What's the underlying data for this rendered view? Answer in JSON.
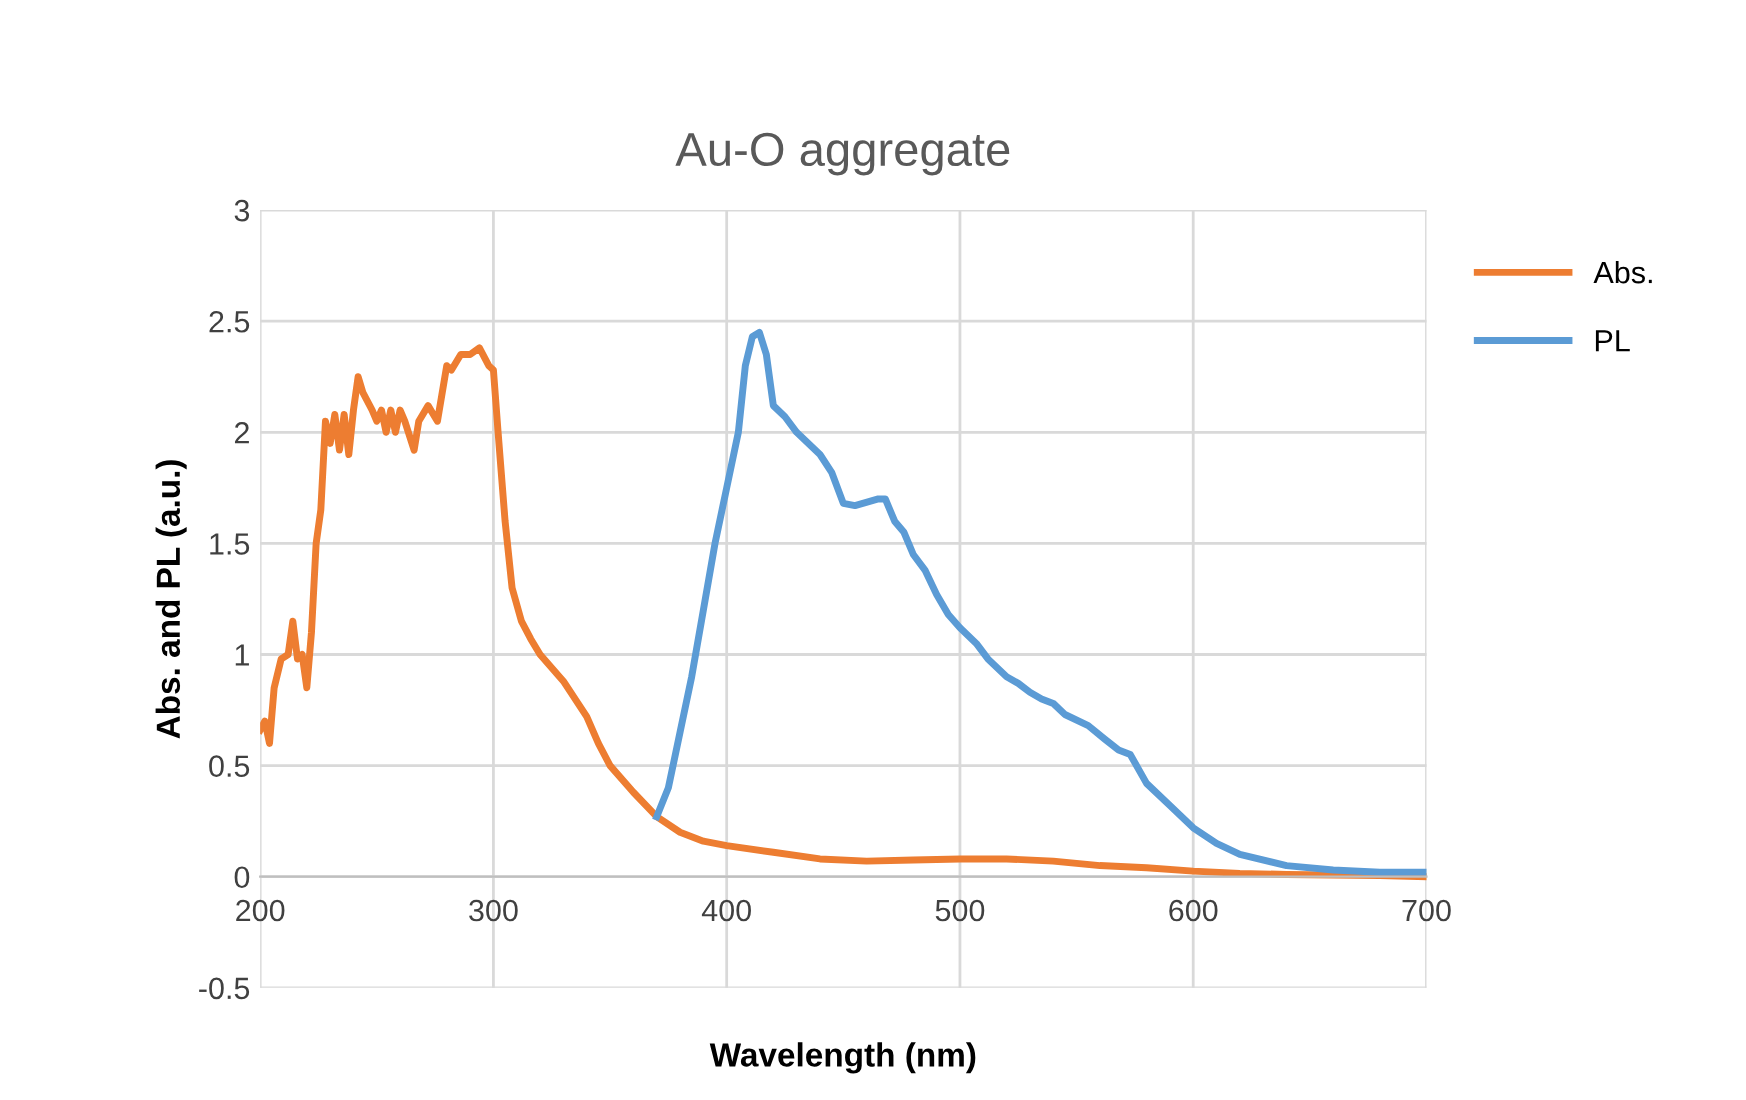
{
  "chart_data": {
    "type": "line",
    "title": "Au-O aggregate",
    "xlabel": "Wavelength (nm)",
    "ylabel": "Abs. and PL (a.u.)",
    "xlim": [
      200,
      700
    ],
    "xticks": [
      200,
      300,
      400,
      500,
      600,
      700
    ],
    "ylim": [
      -0.5,
      3
    ],
    "yticks": [
      -0.5,
      0,
      0.5,
      1,
      1.5,
      2,
      2.5,
      3
    ],
    "grid": true,
    "legend": "right",
    "marker": "none",
    "line_style": "solid",
    "series": [
      {
        "name": "Abs.",
        "color": "#ed7d31",
        "x": [
          200,
          202,
          204,
          206,
          209,
          212,
          214,
          216,
          218,
          220,
          222,
          224,
          226,
          228,
          230,
          232,
          234,
          236,
          238,
          240,
          242,
          244,
          248,
          250,
          252,
          254,
          256,
          258,
          260,
          262,
          266,
          268,
          272,
          276,
          280,
          282,
          286,
          290,
          294,
          298,
          300,
          302,
          305,
          308,
          312,
          316,
          320,
          330,
          340,
          345,
          350,
          360,
          370,
          380,
          390,
          400,
          420,
          440,
          460,
          480,
          500,
          520,
          540,
          560,
          580,
          600,
          620,
          640,
          660,
          680,
          700
        ],
        "values": [
          0.66,
          0.7,
          0.6,
          0.85,
          0.98,
          1.0,
          1.15,
          0.98,
          1.0,
          0.85,
          1.1,
          1.5,
          1.65,
          2.05,
          1.95,
          2.08,
          1.92,
          2.08,
          1.9,
          2.1,
          2.25,
          2.18,
          2.1,
          2.05,
          2.1,
          2.0,
          2.1,
          2.0,
          2.1,
          2.05,
          1.92,
          2.05,
          2.12,
          2.05,
          2.3,
          2.28,
          2.35,
          2.35,
          2.38,
          2.3,
          2.28,
          2.0,
          1.6,
          1.3,
          1.15,
          1.07,
          1.0,
          0.88,
          0.72,
          0.6,
          0.5,
          0.38,
          0.27,
          0.2,
          0.16,
          0.14,
          0.11,
          0.08,
          0.07,
          0.075,
          0.08,
          0.08,
          0.07,
          0.05,
          0.04,
          0.025,
          0.015,
          0.01,
          0.008,
          0.005,
          0.0
        ]
      },
      {
        "name": "PL",
        "color": "#5b9bd5",
        "x": [
          370,
          375,
          380,
          385,
          390,
          395,
          400,
          405,
          408,
          411,
          414,
          417,
          420,
          425,
          430,
          440,
          445,
          450,
          455,
          465,
          468,
          472,
          476,
          480,
          485,
          490,
          495,
          500,
          507,
          512,
          520,
          525,
          530,
          535,
          540,
          545,
          555,
          562,
          568,
          573,
          580,
          590,
          600,
          610,
          620,
          640,
          660,
          680,
          700
        ],
        "values": [
          0.27,
          0.4,
          0.65,
          0.9,
          1.2,
          1.5,
          1.75,
          2.0,
          2.3,
          2.43,
          2.45,
          2.35,
          2.12,
          2.07,
          2.0,
          1.9,
          1.82,
          1.68,
          1.67,
          1.7,
          1.7,
          1.6,
          1.55,
          1.45,
          1.38,
          1.27,
          1.18,
          1.12,
          1.05,
          0.98,
          0.9,
          0.87,
          0.83,
          0.8,
          0.78,
          0.73,
          0.68,
          0.62,
          0.57,
          0.55,
          0.42,
          0.32,
          0.22,
          0.15,
          0.1,
          0.05,
          0.03,
          0.02,
          0.02
        ]
      }
    ]
  }
}
